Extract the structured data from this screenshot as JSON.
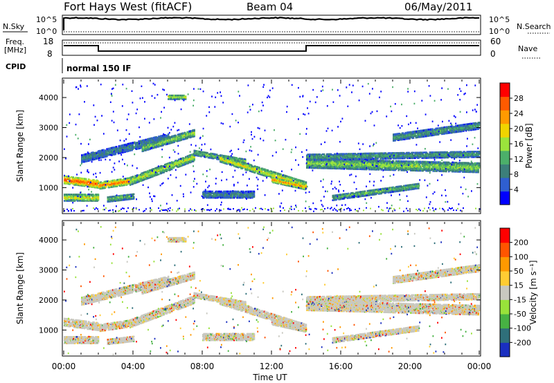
{
  "header": {
    "station": "Fort Hays West (fitACF)",
    "beam": "Beam 04",
    "date": "06/May/2011"
  },
  "noise_panel": {
    "left_label": "N.Sky",
    "right_label": "N.Search",
    "left_ticks": [
      "10^5",
      "10^0"
    ],
    "right_ticks": [
      "10^5",
      "10^0"
    ]
  },
  "freq_panel": {
    "left_label_1": "Freq.",
    "left_label_2": "[MHz]",
    "right_label": "Nave",
    "left_ticks": [
      "18",
      "8"
    ],
    "right_ticks": [
      "60",
      "0"
    ],
    "freq_steps": [
      {
        "start_h": 0.0,
        "end_h": 2.0,
        "freq": 15.5
      },
      {
        "start_h": 2.0,
        "end_h": 14.0,
        "freq": 10.6
      },
      {
        "start_h": 14.0,
        "end_h": 24.0,
        "freq": 15.5
      }
    ]
  },
  "cpid": {
    "label": "CPID",
    "value": "normal 150 IF"
  },
  "chart_data": [
    {
      "type": "heatmap",
      "name": "power",
      "ylabel": "Slant Range [km]",
      "xlabel": "",
      "colorbar_label": "Power [dB]",
      "colorbar_ticks": [
        "28",
        "24",
        "20",
        "16",
        "12",
        "8",
        "4"
      ],
      "colorbar_colors": [
        "#0000ff",
        "#2f5fd0",
        "#3c7f7a",
        "#4caf6a",
        "#9be43c",
        "#f0d400",
        "#ff9a00",
        "#ff5a00",
        "#ff0000"
      ],
      "y_ticks": [
        "1000",
        "2000",
        "3000",
        "4000"
      ],
      "ylim": [
        180,
        4600
      ],
      "xlim": [
        0,
        24
      ],
      "echo_bands": [
        {
          "t": [
            0.0,
            2.0
          ],
          "r0": 1300,
          "r1": 1150,
          "w": 260,
          "p": 28
        },
        {
          "t": [
            0.0,
            2.0
          ],
          "r0": 700,
          "r1": 700,
          "w": 220,
          "p": 20
        },
        {
          "t": [
            2.0,
            3.8
          ],
          "r0": 1100,
          "r1": 1250,
          "w": 220,
          "p": 26
        },
        {
          "t": [
            2.5,
            4.0
          ],
          "r0": 650,
          "r1": 750,
          "w": 180,
          "p": 14
        },
        {
          "t": [
            3.8,
            7.5
          ],
          "r0": 1250,
          "r1": 2050,
          "w": 260,
          "p": 18
        },
        {
          "t": [
            1.0,
            6.0
          ],
          "r0": 2000,
          "r1": 2700,
          "w": 260,
          "p": 10
        },
        {
          "t": [
            4.5,
            7.5
          ],
          "r0": 2350,
          "r1": 2850,
          "w": 220,
          "p": 16
        },
        {
          "t": [
            7.5,
            10.5
          ],
          "r0": 2200,
          "r1": 1900,
          "w": 180,
          "p": 14
        },
        {
          "t": [
            9.0,
            14.0
          ],
          "r0": 2000,
          "r1": 1100,
          "w": 220,
          "p": 20
        },
        {
          "t": [
            12.0,
            14.0
          ],
          "r0": 1300,
          "r1": 1050,
          "w": 180,
          "p": 24
        },
        {
          "t": [
            8.0,
            11.0
          ],
          "r0": 800,
          "r1": 800,
          "w": 220,
          "p": 10
        },
        {
          "t": [
            6.0,
            7.0
          ],
          "r0": 4050,
          "r1": 4050,
          "w": 150,
          "p": 18
        },
        {
          "t": [
            14.0,
            24.0
          ],
          "r0": 1850,
          "r1": 1700,
          "w": 320,
          "p": 16
        },
        {
          "t": [
            14.0,
            24.0
          ],
          "r0": 2050,
          "r1": 2150,
          "w": 200,
          "p": 12
        },
        {
          "t": [
            19.0,
            24.0
          ],
          "r0": 2700,
          "r1": 3100,
          "w": 220,
          "p": 12
        },
        {
          "t": [
            15.5,
            20.5
          ],
          "r0": 700,
          "r1": 1100,
          "w": 180,
          "p": 14
        }
      ]
    },
    {
      "type": "heatmap",
      "name": "velocity",
      "ylabel": "Slant Range [km]",
      "xlabel": "Time UT",
      "colorbar_label": "Velocity [m s⁻¹]",
      "colorbar_ticks": [
        "200",
        "100",
        "50",
        "15",
        "-15",
        "-50",
        "-100",
        "-200"
      ],
      "colorbar_colors": [
        "#1a2fc0",
        "#2f6f7a",
        "#47b243",
        "#98e23a",
        "#c8c8c0",
        "#ffcc33",
        "#ff9900",
        "#ff5500",
        "#ff0000"
      ],
      "y_ticks": [
        "1000",
        "2000",
        "3000",
        "4000"
      ],
      "x_ticks": [
        "00:00",
        "04:00",
        "08:00",
        "12:00",
        "16:00",
        "20:00",
        "00:00"
      ],
      "ylim": [
        180,
        4600
      ],
      "xlim": [
        0,
        24
      ]
    }
  ]
}
